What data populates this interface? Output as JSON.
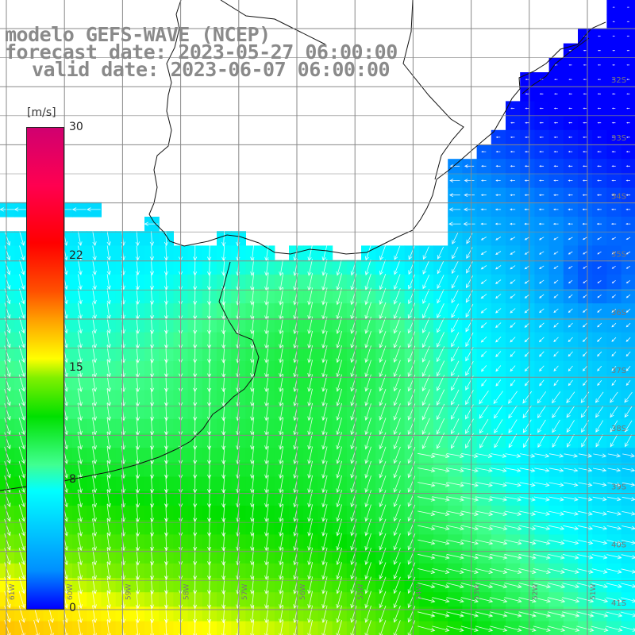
{
  "title": {
    "line1": "modelo GEFS-WAVE (NCEP)",
    "line2": "forecast date: 2023-05-27 06:00:00",
    "line3": "valid date: 2023-06-07 06:00:00"
  },
  "colorbar": {
    "unit": "[m/s]",
    "ticks": [
      {
        "label": "30",
        "value": 30
      },
      {
        "label": "22",
        "value": 22
      },
      {
        "label": "15",
        "value": 15
      },
      {
        "label": "8",
        "value": 8
      },
      {
        "label": "0",
        "value": 0
      }
    ],
    "colors": [
      "#0000ff",
      "#00ffff",
      "#00e000",
      "#ffff00",
      "#ff0000",
      "#d00070"
    ]
  },
  "map": {
    "lat_labels": [
      "32S",
      "33S",
      "34S",
      "35S",
      "36S",
      "37S",
      "38S",
      "39S",
      "40S",
      "41S"
    ],
    "lon_labels": [
      "61W",
      "60W",
      "59W",
      "58W",
      "57W",
      "56W",
      "55W",
      "54W",
      "53W",
      "52W",
      "51W"
    ],
    "land_color": "#ffffff",
    "grid_color": "#888888",
    "arrow_color": "#ffffff"
  }
}
